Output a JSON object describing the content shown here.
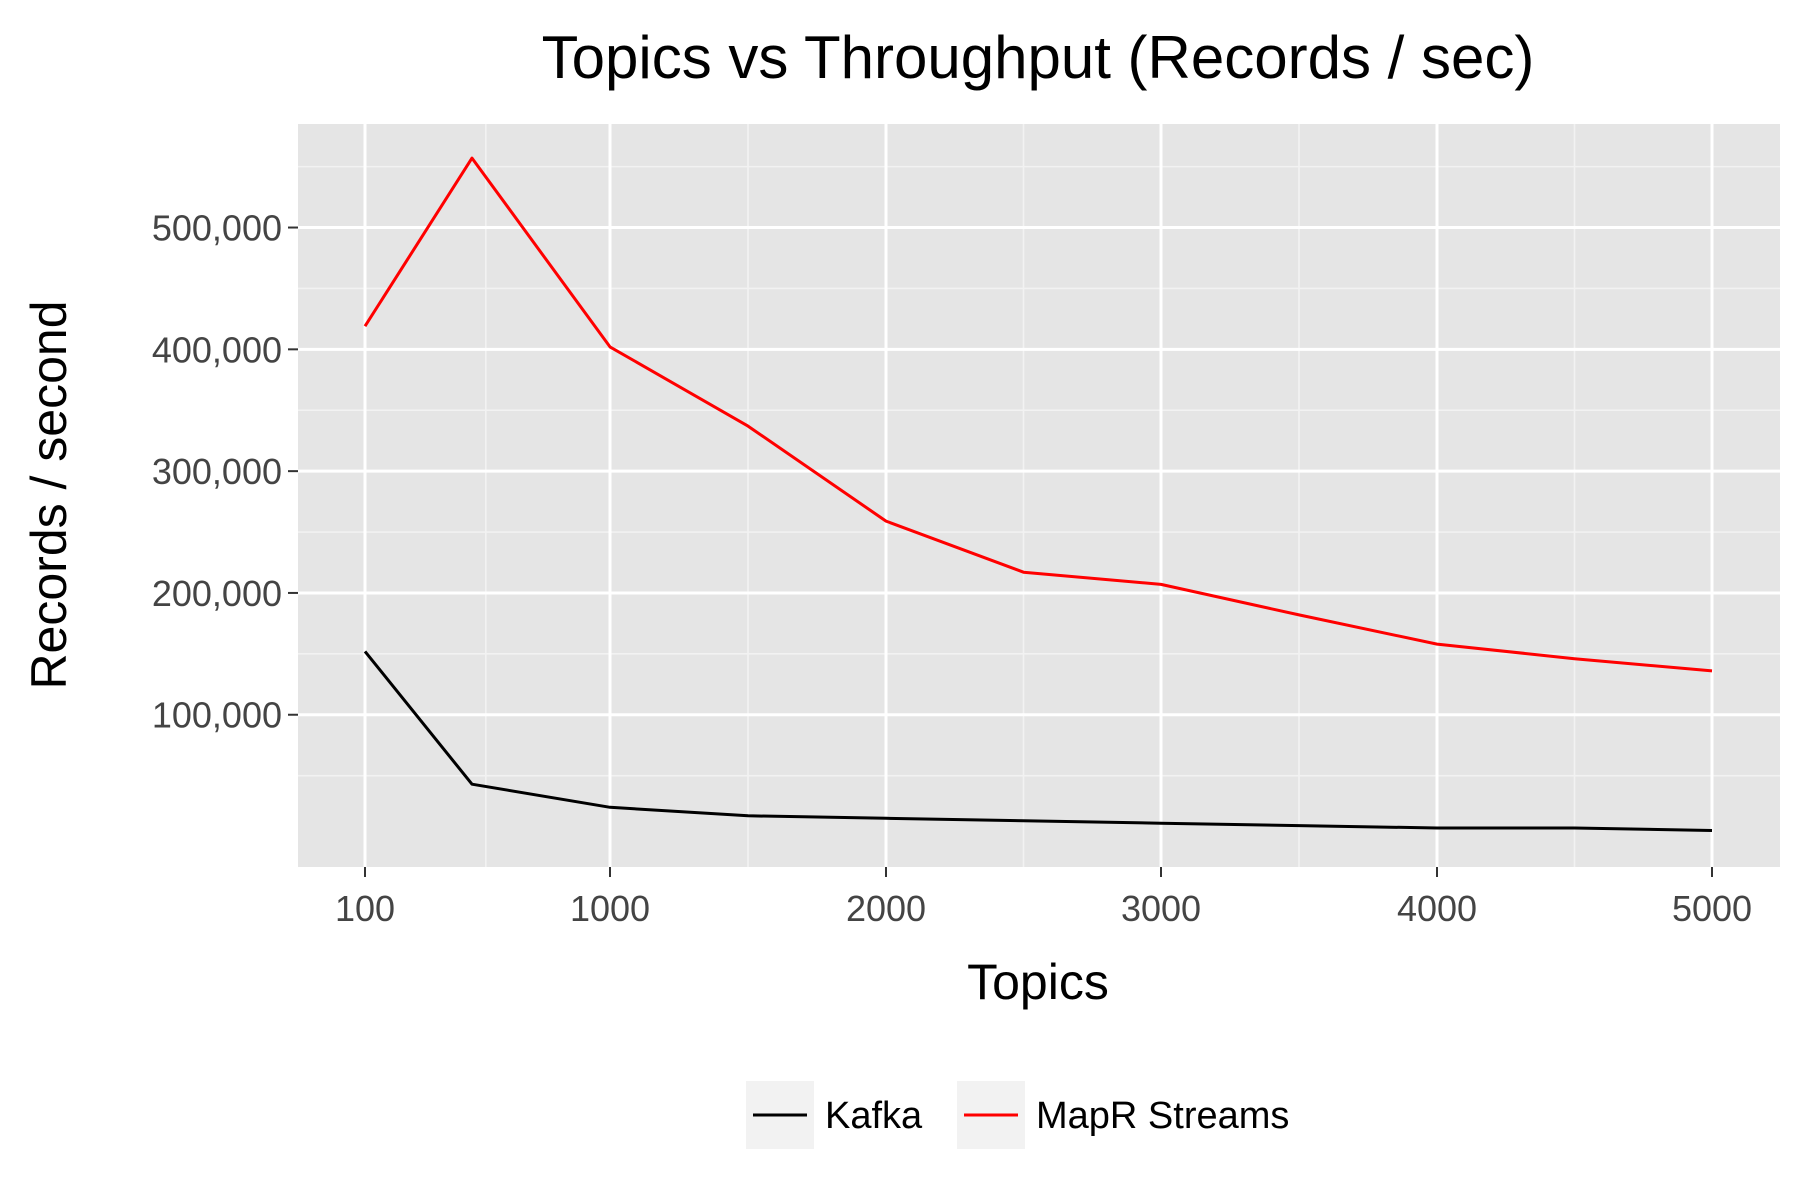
{
  "chart_data": {
    "type": "line",
    "title": "Topics vs Throughput (Records / sec)",
    "xlabel": "Topics",
    "ylabel": "Records / second",
    "x": [
      100,
      500,
      1000,
      1500,
      2000,
      2500,
      3000,
      3500,
      4000,
      4500,
      5000
    ],
    "x_ticks": [
      100,
      1000,
      2000,
      3000,
      4000,
      5000
    ],
    "x_tick_labels": [
      "100",
      "1000",
      "2000",
      "3000",
      "4000",
      "5000"
    ],
    "y_ticks": [
      100000,
      200000,
      300000,
      400000,
      500000
    ],
    "y_tick_labels": [
      "100,000",
      "200,000",
      "300,000",
      "400,000",
      "500,000"
    ],
    "xlim": [
      -150,
      5250
    ],
    "ylim": [
      -25000,
      585000
    ],
    "grid": true,
    "legend_position": "bottom",
    "series": [
      {
        "name": "Kafka",
        "color": "#000000",
        "values": [
          152000,
          43000,
          24000,
          17000,
          15000,
          13000,
          11000,
          9000,
          7000,
          7000,
          5000
        ]
      },
      {
        "name": "MapR Streams",
        "color": "#ff0000",
        "values": [
          419000,
          557000,
          402000,
          337000,
          259000,
          217000,
          207000,
          182000,
          158000,
          146000,
          136000
        ]
      }
    ]
  }
}
